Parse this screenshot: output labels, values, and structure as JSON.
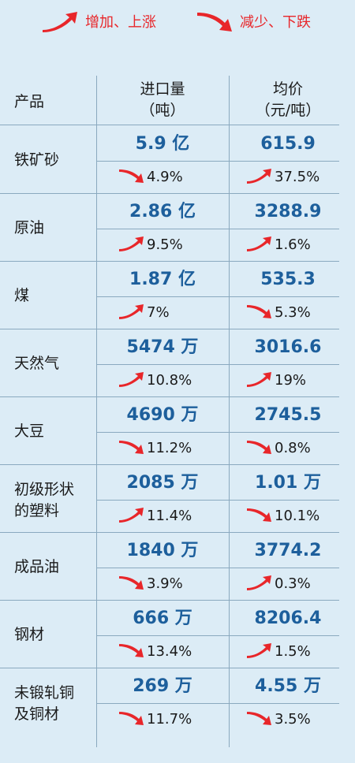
{
  "legend": {
    "up_label": "增加、上涨",
    "down_label": "减少、下跌",
    "up_color": "#e8262a",
    "down_color": "#e8262a"
  },
  "header": {
    "product": "产品",
    "col1_line1": "进口量",
    "col1_line2": "（吨）",
    "col2_line1": "均价",
    "col2_line2": "（元/吨）"
  },
  "rows": [
    {
      "name_l1": "铁矿砂",
      "name_l2": "",
      "volume": "5.9 亿",
      "volume_trend": "down",
      "volume_change": "4.9%",
      "price": "615.9",
      "price_trend": "up",
      "price_change": "37.5%"
    },
    {
      "name_l1": "原油",
      "name_l2": "",
      "volume": "2.86 亿",
      "volume_trend": "up",
      "volume_change": "9.5%",
      "price": "3288.9",
      "price_trend": "up",
      "price_change": "1.6%"
    },
    {
      "name_l1": "煤",
      "name_l2": "",
      "volume": "1.87 亿",
      "volume_trend": "up",
      "volume_change": "7%",
      "price": "535.3",
      "price_trend": "down",
      "price_change": "5.3%"
    },
    {
      "name_l1": "天然气",
      "name_l2": "",
      "volume": "5474 万",
      "volume_trend": "up",
      "volume_change": "10.8%",
      "price": "3016.6",
      "price_trend": "up",
      "price_change": "19%"
    },
    {
      "name_l1": "大豆",
      "name_l2": "",
      "volume": "4690 万",
      "volume_trend": "down",
      "volume_change": "11.2%",
      "price": "2745.5",
      "price_trend": "down",
      "price_change": "0.8%"
    },
    {
      "name_l1": "初级形状",
      "name_l2": "的塑料",
      "volume": "2085 万",
      "volume_trend": "up",
      "volume_change": "11.4%",
      "price": "1.01 万",
      "price_trend": "down",
      "price_change": "10.1%"
    },
    {
      "name_l1": "成品油",
      "name_l2": "",
      "volume": "1840 万",
      "volume_trend": "down",
      "volume_change": "3.9%",
      "price": "3774.2",
      "price_trend": "up",
      "price_change": "0.3%"
    },
    {
      "name_l1": "钢材",
      "name_l2": "",
      "volume": "666 万",
      "volume_trend": "down",
      "volume_change": "13.4%",
      "price": "8206.4",
      "price_trend": "up",
      "price_change": "1.5%"
    },
    {
      "name_l1": "未锻轧铜",
      "name_l2": "及铜材",
      "volume": "269 万",
      "volume_trend": "down",
      "volume_change": "11.7%",
      "price": "4.55 万",
      "price_trend": "down",
      "price_change": "3.5%"
    }
  ]
}
